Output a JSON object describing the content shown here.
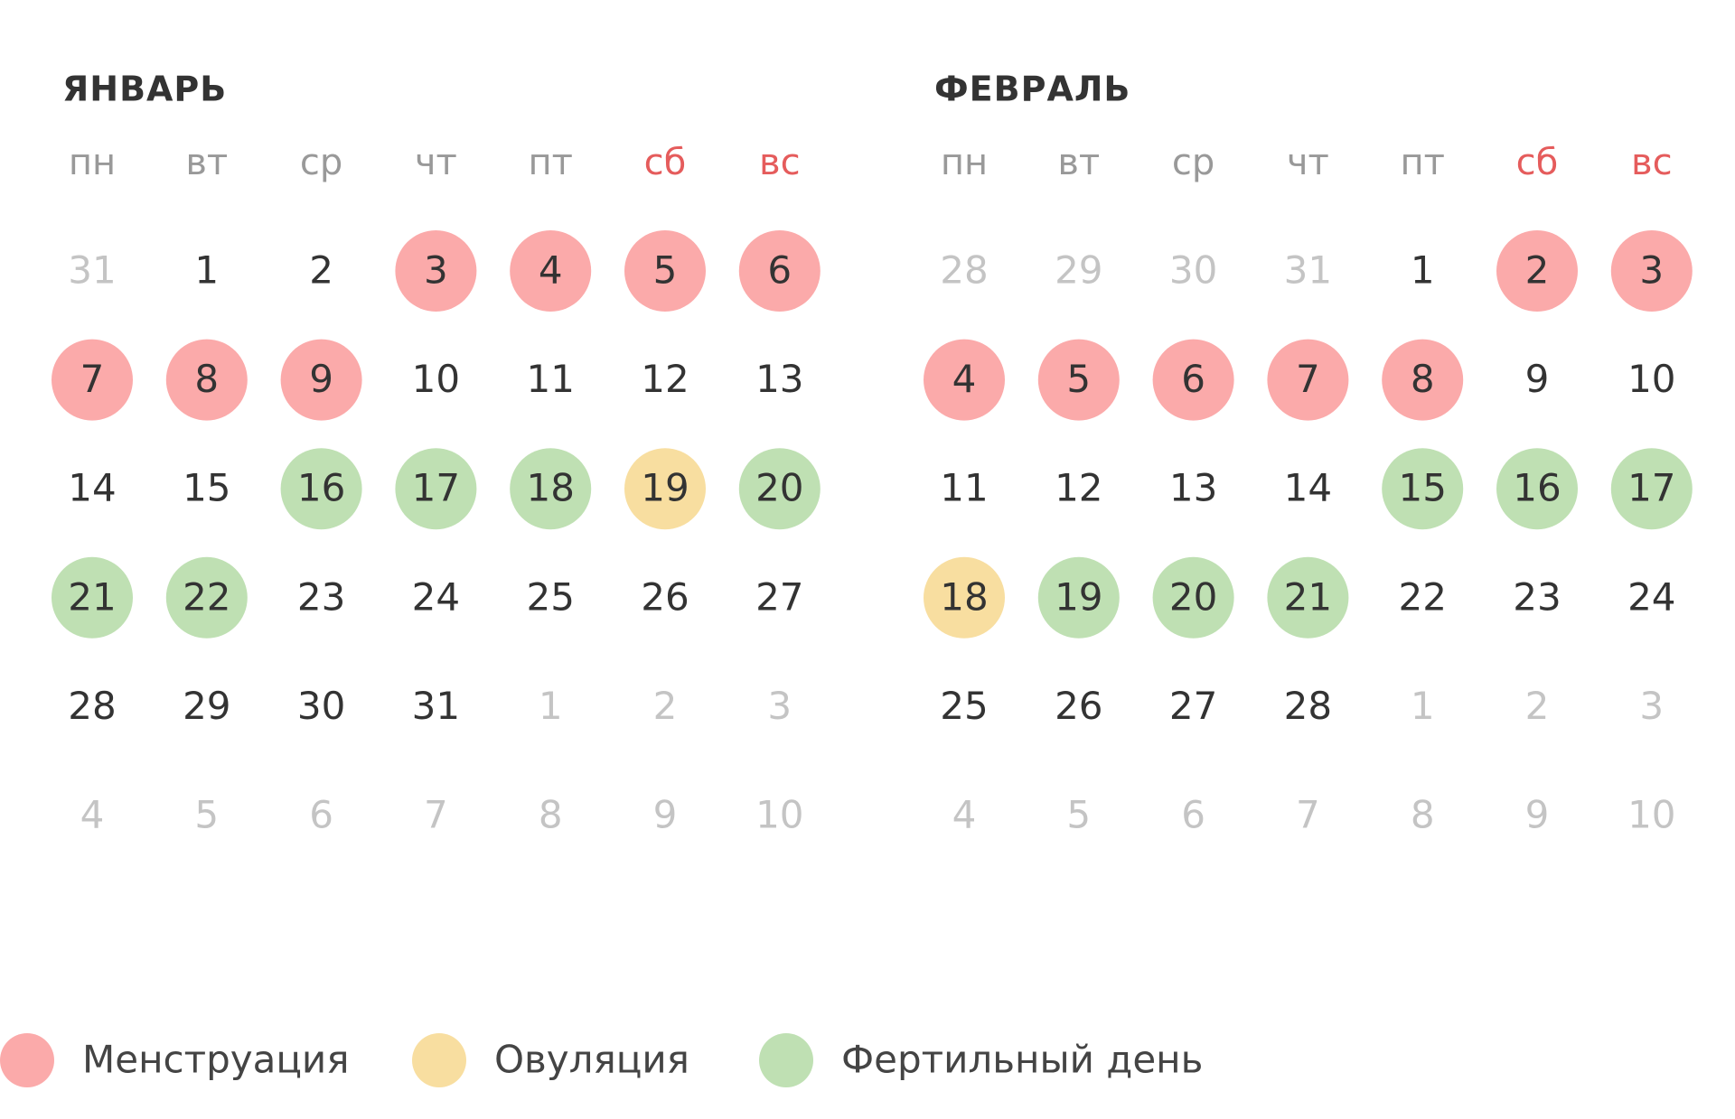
{
  "state_colors": {
    "menstruation": "#fbaaaa",
    "ovulation": "#f8dea0",
    "fertile": "#bfe0b3"
  },
  "months": [
    {
      "title": "ЯНВАРЬ",
      "weekdays": [
        "пн",
        "вт",
        "ср",
        "чт",
        "пт",
        "сб",
        "вс"
      ],
      "weeks": [
        [
          {
            "day": 31,
            "state": "outside"
          },
          {
            "day": 1,
            "state": "normal"
          },
          {
            "day": 2,
            "state": "normal"
          },
          {
            "day": 3,
            "state": "menstruation"
          },
          {
            "day": 4,
            "state": "menstruation"
          },
          {
            "day": 5,
            "state": "menstruation"
          },
          {
            "day": 6,
            "state": "menstruation"
          }
        ],
        [
          {
            "day": 7,
            "state": "menstruation"
          },
          {
            "day": 8,
            "state": "menstruation"
          },
          {
            "day": 9,
            "state": "menstruation"
          },
          {
            "day": 10,
            "state": "normal"
          },
          {
            "day": 11,
            "state": "normal"
          },
          {
            "day": 12,
            "state": "normal"
          },
          {
            "day": 13,
            "state": "normal"
          }
        ],
        [
          {
            "day": 14,
            "state": "normal"
          },
          {
            "day": 15,
            "state": "normal"
          },
          {
            "day": 16,
            "state": "fertile"
          },
          {
            "day": 17,
            "state": "fertile"
          },
          {
            "day": 18,
            "state": "fertile"
          },
          {
            "day": 19,
            "state": "ovulation"
          },
          {
            "day": 20,
            "state": "fertile"
          }
        ],
        [
          {
            "day": 21,
            "state": "fertile"
          },
          {
            "day": 22,
            "state": "fertile"
          },
          {
            "day": 23,
            "state": "normal"
          },
          {
            "day": 24,
            "state": "normal"
          },
          {
            "day": 25,
            "state": "normal"
          },
          {
            "day": 26,
            "state": "normal"
          },
          {
            "day": 27,
            "state": "normal"
          }
        ],
        [
          {
            "day": 28,
            "state": "normal"
          },
          {
            "day": 29,
            "state": "normal"
          },
          {
            "day": 30,
            "state": "normal"
          },
          {
            "day": 31,
            "state": "normal"
          },
          {
            "day": 1,
            "state": "outside"
          },
          {
            "day": 2,
            "state": "outside"
          },
          {
            "day": 3,
            "state": "outside"
          }
        ],
        [
          {
            "day": 4,
            "state": "outside"
          },
          {
            "day": 5,
            "state": "outside"
          },
          {
            "day": 6,
            "state": "outside"
          },
          {
            "day": 7,
            "state": "outside"
          },
          {
            "day": 8,
            "state": "outside"
          },
          {
            "day": 9,
            "state": "outside"
          },
          {
            "day": 10,
            "state": "outside"
          }
        ]
      ]
    },
    {
      "title": "ФЕВРАЛЬ",
      "weekdays": [
        "пн",
        "вт",
        "ср",
        "чт",
        "пт",
        "сб",
        "вс"
      ],
      "weeks": [
        [
          {
            "day": 28,
            "state": "outside"
          },
          {
            "day": 29,
            "state": "outside"
          },
          {
            "day": 30,
            "state": "outside"
          },
          {
            "day": 31,
            "state": "outside"
          },
          {
            "day": 1,
            "state": "normal"
          },
          {
            "day": 2,
            "state": "menstruation"
          },
          {
            "day": 3,
            "state": "menstruation"
          }
        ],
        [
          {
            "day": 4,
            "state": "menstruation"
          },
          {
            "day": 5,
            "state": "menstruation"
          },
          {
            "day": 6,
            "state": "menstruation"
          },
          {
            "day": 7,
            "state": "menstruation"
          },
          {
            "day": 8,
            "state": "menstruation"
          },
          {
            "day": 9,
            "state": "normal"
          },
          {
            "day": 10,
            "state": "normal"
          }
        ],
        [
          {
            "day": 11,
            "state": "normal"
          },
          {
            "day": 12,
            "state": "normal"
          },
          {
            "day": 13,
            "state": "normal"
          },
          {
            "day": 14,
            "state": "normal"
          },
          {
            "day": 15,
            "state": "fertile"
          },
          {
            "day": 16,
            "state": "fertile"
          },
          {
            "day": 17,
            "state": "fertile"
          }
        ],
        [
          {
            "day": 18,
            "state": "ovulation"
          },
          {
            "day": 19,
            "state": "fertile"
          },
          {
            "day": 20,
            "state": "fertile"
          },
          {
            "day": 21,
            "state": "fertile"
          },
          {
            "day": 22,
            "state": "normal"
          },
          {
            "day": 23,
            "state": "normal"
          },
          {
            "day": 24,
            "state": "normal"
          }
        ],
        [
          {
            "day": 25,
            "state": "normal"
          },
          {
            "day": 26,
            "state": "normal"
          },
          {
            "day": 27,
            "state": "normal"
          },
          {
            "day": 28,
            "state": "normal"
          },
          {
            "day": 1,
            "state": "outside"
          },
          {
            "day": 2,
            "state": "outside"
          },
          {
            "day": 3,
            "state": "outside"
          }
        ],
        [
          {
            "day": 4,
            "state": "outside"
          },
          {
            "day": 5,
            "state": "outside"
          },
          {
            "day": 6,
            "state": "outside"
          },
          {
            "day": 7,
            "state": "outside"
          },
          {
            "day": 8,
            "state": "outside"
          },
          {
            "day": 9,
            "state": "outside"
          },
          {
            "day": 10,
            "state": "outside"
          }
        ]
      ]
    }
  ],
  "legend": [
    {
      "label": "Менструация",
      "state": "menstruation"
    },
    {
      "label": "Овуляция",
      "state": "ovulation"
    },
    {
      "label": "Фертильный день",
      "state": "fertile"
    }
  ]
}
